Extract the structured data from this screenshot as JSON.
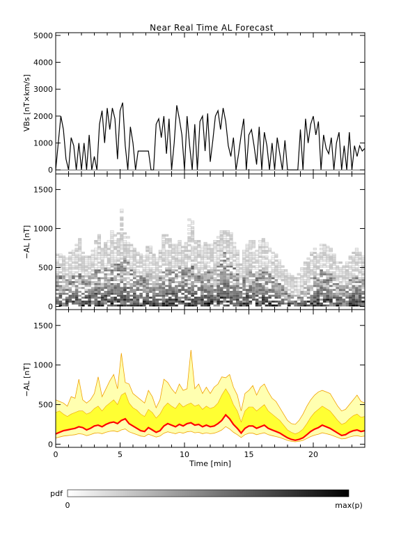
{
  "title": "Near Real Time AL Forecast",
  "xlabel": "Time [min]",
  "colorbar": {
    "label": "pdf",
    "min_label": "0",
    "max_label": "max(p)"
  },
  "chart_data": [
    {
      "type": "line",
      "name": "vbs-panel",
      "ylabel": "VBs [nT×km/s]",
      "ylim": [
        -150,
        5100
      ],
      "yticks": [
        0,
        1000,
        2000,
        3000,
        4000,
        5000
      ],
      "xlim": [
        0,
        24
      ],
      "series": [
        {
          "x": [
            0.0,
            0.2,
            0.4,
            0.6,
            0.8,
            1.0,
            1.2,
            1.4,
            1.6,
            1.8,
            2.0,
            2.2,
            2.4,
            2.6,
            2.8,
            3.0,
            3.2,
            3.4,
            3.6,
            3.8,
            4.0,
            4.2,
            4.4,
            4.6,
            4.8,
            5.0,
            5.2,
            5.4,
            5.6,
            5.8,
            6.0,
            6.2,
            6.4,
            6.6,
            6.8,
            7.0,
            7.2,
            7.4,
            7.6,
            7.8,
            8.0,
            8.2,
            8.4,
            8.6,
            8.8,
            9.0,
            9.2,
            9.4,
            9.6,
            9.8,
            10.0,
            10.2,
            10.4,
            10.6,
            10.8,
            11.0,
            11.2,
            11.4,
            11.6,
            11.8,
            12.0,
            12.2,
            12.4,
            12.6,
            12.8,
            13.0,
            13.2,
            13.4,
            13.6,
            13.8,
            14.0,
            14.2,
            14.4,
            14.6,
            14.8,
            15.0,
            15.2,
            15.4,
            15.6,
            15.8,
            16.0,
            16.2,
            16.4,
            16.6,
            16.8,
            17.0,
            17.2,
            17.4,
            17.6,
            17.8,
            18.0,
            18.2,
            18.4,
            18.6,
            18.8,
            19.0,
            19.2,
            19.4,
            19.6,
            19.8,
            20.0,
            20.2,
            20.4,
            20.6,
            20.8,
            21.0,
            21.2,
            21.4,
            21.6,
            21.8,
            22.0,
            22.2,
            22.4,
            22.6,
            22.8,
            23.0,
            23.2,
            23.4,
            23.6,
            23.8,
            24.0
          ],
          "values": [
            0,
            1000,
            2000,
            1500,
            400,
            0,
            1200,
            900,
            0,
            1000,
            0,
            1000,
            0,
            1300,
            0,
            500,
            0,
            1700,
            2200,
            1000,
            2300,
            1500,
            2300,
            1900,
            400,
            2200,
            2500,
            900,
            0,
            1600,
            1000,
            0,
            700,
            700,
            700,
            700,
            700,
            0,
            0,
            1700,
            1900,
            1200,
            2000,
            600,
            1900,
            0,
            1000,
            2400,
            1900,
            1300,
            0,
            2000,
            900,
            0,
            1700,
            0,
            1800,
            2000,
            700,
            2100,
            300,
            1100,
            2000,
            2200,
            1500,
            2300,
            1800,
            900,
            500,
            1200,
            0,
            600,
            1300,
            1900,
            0,
            1300,
            1500,
            900,
            200,
            1600,
            0,
            1400,
            900,
            0,
            1000,
            0,
            1200,
            600,
            0,
            1100,
            0,
            0,
            0,
            0,
            0,
            1500,
            0,
            1900,
            1000,
            1700,
            2000,
            1300,
            1800,
            0,
            1300,
            800,
            600,
            1200,
            0,
            1000,
            1400,
            0,
            900,
            0,
            1400,
            0,
            900,
            500,
            900,
            700,
            800
          ]
        }
      ]
    },
    {
      "type": "heatmap",
      "name": "al-pdf-panel",
      "ylabel": "−AL [nT]",
      "ylim": [
        -40,
        1700
      ],
      "yticks": [
        0,
        500,
        1000,
        1500
      ],
      "xlim": [
        0,
        24
      ],
      "cell_x_min": 0.25,
      "cell_y_nt": 25,
      "color_scale": "white to black = 0 to max(p)"
    },
    {
      "type": "area",
      "name": "al-forecast-panel",
      "ylabel": "−AL [nT]",
      "ylim": [
        -40,
        1700
      ],
      "yticks": [
        0,
        500,
        1000,
        1500
      ],
      "xlim": [
        0,
        24
      ],
      "xticks": [
        0,
        5,
        10,
        15,
        20
      ],
      "x": [
        0.0,
        0.3,
        0.6,
        0.9,
        1.2,
        1.5,
        1.8,
        2.1,
        2.4,
        2.7,
        3.0,
        3.3,
        3.6,
        3.9,
        4.2,
        4.5,
        4.8,
        5.1,
        5.4,
        5.7,
        6.0,
        6.3,
        6.6,
        6.9,
        7.2,
        7.5,
        7.8,
        8.1,
        8.4,
        8.7,
        9.0,
        9.3,
        9.6,
        9.9,
        10.2,
        10.5,
        10.8,
        11.1,
        11.4,
        11.7,
        12.0,
        12.3,
        12.6,
        12.9,
        13.2,
        13.5,
        13.8,
        14.1,
        14.4,
        14.7,
        15.0,
        15.3,
        15.6,
        15.9,
        16.2,
        16.5,
        16.8,
        17.1,
        17.4,
        17.7,
        18.0,
        18.3,
        18.6,
        18.9,
        19.2,
        19.5,
        19.8,
        20.1,
        20.4,
        20.7,
        21.0,
        21.3,
        21.6,
        21.9,
        22.2,
        22.5,
        22.8,
        23.1,
        23.4,
        23.7,
        24.0
      ],
      "series": [
        {
          "name": "median",
          "color": "#ff0000",
          "values": [
            130,
            150,
            170,
            180,
            190,
            200,
            220,
            210,
            180,
            200,
            230,
            240,
            220,
            250,
            270,
            280,
            260,
            300,
            320,
            260,
            230,
            200,
            170,
            160,
            210,
            180,
            150,
            170,
            230,
            260,
            240,
            220,
            250,
            230,
            260,
            270,
            240,
            250,
            220,
            240,
            220,
            230,
            260,
            300,
            370,
            320,
            250,
            200,
            140,
            200,
            230,
            230,
            200,
            220,
            240,
            200,
            180,
            160,
            140,
            110,
            80,
            60,
            50,
            60,
            80,
            120,
            160,
            190,
            210,
            240,
            220,
            200,
            170,
            140,
            110,
            120,
            150,
            170,
            180,
            160,
            170
          ]
        },
        {
          "name": "upper-inner",
          "color": "#ffff33",
          "values": [
            400,
            420,
            380,
            350,
            380,
            400,
            420,
            420,
            380,
            400,
            450,
            480,
            420,
            480,
            520,
            560,
            500,
            620,
            650,
            520,
            460,
            430,
            380,
            350,
            440,
            400,
            330,
            380,
            470,
            520,
            480,
            450,
            520,
            470,
            500,
            520,
            480,
            500,
            440,
            480,
            450,
            470,
            520,
            620,
            700,
            620,
            500,
            420,
            280,
            420,
            470,
            470,
            420,
            460,
            500,
            420,
            380,
            340,
            300,
            240,
            180,
            150,
            130,
            150,
            190,
            260,
            340,
            400,
            440,
            480,
            450,
            420,
            360,
            300,
            250,
            270,
            320,
            360,
            380,
            340,
            350
          ]
        },
        {
          "name": "upper-outer",
          "color": "#ffffb0",
          "values": [
            560,
            540,
            520,
            480,
            600,
            580,
            820,
            560,
            520,
            560,
            640,
            850,
            600,
            700,
            800,
            880,
            700,
            1150,
            780,
            760,
            640,
            600,
            560,
            520,
            680,
            600,
            460,
            560,
            820,
            780,
            700,
            640,
            760,
            680,
            700,
            1190,
            700,
            760,
            640,
            720,
            640,
            720,
            760,
            850,
            840,
            880,
            720,
            620,
            420,
            640,
            680,
            740,
            620,
            720,
            760,
            660,
            580,
            540,
            460,
            380,
            300,
            260,
            250,
            300,
            380,
            480,
            560,
            620,
            660,
            680,
            660,
            640,
            560,
            480,
            420,
            440,
            500,
            560,
            620,
            540,
            520
          ]
        }
      ]
    }
  ]
}
